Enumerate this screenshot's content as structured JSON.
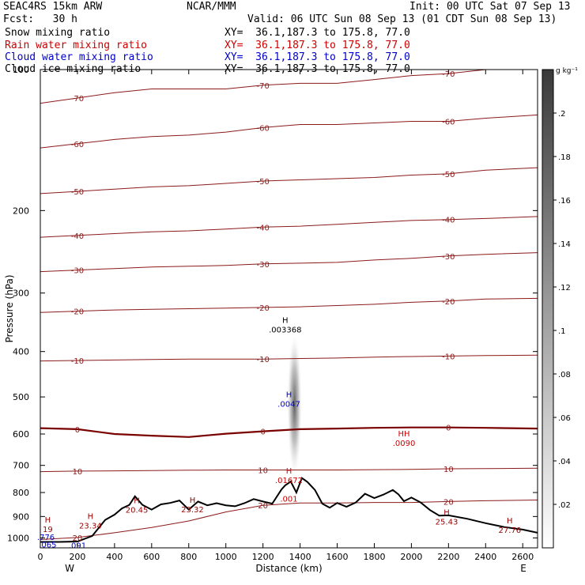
{
  "header": {
    "model": "SEAC4RS 15km ARW",
    "org": "NCAR/MMM",
    "init": "Init: 00 UTC Sat 07 Sep 13",
    "fcst": "Fcst:   30 h",
    "valid": "Valid: 06 UTC Sun 08 Sep 13 (01 CDT Sun 08 Sep 13)",
    "fields": [
      {
        "name": "Snow mixing ratio",
        "xy": "XY=  36.1,187.3 to 175.8, 77.0",
        "color": "#000000"
      },
      {
        "name": "Rain water mixing ratio",
        "xy": "XY=  36.1,187.3 to 175.8, 77.0",
        "color": "#cc0000"
      },
      {
        "name": "Cloud water mixing ratio",
        "xy": "XY=  36.1,187.3 to 175.8, 77.0",
        "color": "#0000cc"
      },
      {
        "name": "Cloud ice mixing ratio",
        "xy": "XY=  36.1,187.3 to 175.8, 77.0",
        "color": "#000000"
      }
    ]
  },
  "chart_data": {
    "type": "cross-section contour",
    "xlabel": "Distance (km)",
    "ylabel": "Pressure (hPa)",
    "xlim": [
      0,
      2680
    ],
    "ylim": [
      1050,
      100
    ],
    "x_ticks": [
      0,
      200,
      400,
      600,
      800,
      1000,
      1200,
      1400,
      1600,
      1800,
      2000,
      2200,
      2400,
      2600
    ],
    "y_ticks": [
      100,
      200,
      300,
      400,
      500,
      600,
      700,
      800,
      900,
      1000
    ],
    "left_end_label": "W",
    "right_end_label": "E",
    "colorbar": {
      "unit": "g kg⁻¹",
      "ticks": [
        ".02",
        ".04",
        ".06",
        ".08",
        ".1",
        ".12",
        ".14",
        ".16",
        ".18",
        ".2"
      ],
      "tick_values": [
        0.02,
        0.04,
        0.06,
        0.08,
        0.1,
        0.12,
        0.14,
        0.16,
        0.18,
        0.2
      ],
      "max": 0.22
    },
    "temperature_isotherms": [
      {
        "value": -70,
        "p": [
          118,
          115,
          112,
          110,
          110,
          110,
          108,
          107,
          107,
          105,
          103,
          102,
          100,
          99
        ]
      },
      {
        "value": -60,
        "p": [
          147,
          144,
          141,
          139,
          138,
          136,
          133,
          131,
          131,
          130,
          129,
          129,
          127,
          125
        ]
      },
      {
        "value": -50,
        "p": [
          184,
          182,
          180,
          178,
          177,
          175,
          173,
          172,
          171,
          170,
          168,
          167,
          164,
          162
        ]
      },
      {
        "value": -40,
        "p": [
          228,
          226,
          224,
          222,
          221,
          219,
          217,
          216,
          214,
          212,
          210,
          209,
          208,
          206
        ]
      },
      {
        "value": -30,
        "p": [
          270,
          268,
          266,
          264,
          263,
          262,
          260,
          259,
          258,
          255,
          253,
          250,
          248,
          246
        ]
      },
      {
        "value": -20,
        "p": [
          330,
          328,
          326,
          325,
          324,
          323,
          322,
          321,
          319,
          317,
          314,
          312,
          309,
          308
        ]
      },
      {
        "value": -10,
        "p": [
          419,
          418,
          417,
          416,
          415,
          415,
          415,
          414,
          413,
          411,
          410,
          409,
          408,
          407
        ]
      },
      {
        "value": 0,
        "p": [
          583,
          586,
          600,
          605,
          609,
          599,
          592,
          586,
          584,
          582,
          581,
          581,
          582,
          584
        ]
      },
      {
        "value": 10,
        "p": [
          722,
          720,
          719,
          718,
          717,
          716,
          716,
          716,
          716,
          715,
          714,
          712,
          711,
          710
        ]
      },
      {
        "value": 20,
        "p": [
          1008,
          998,
          975,
          950,
          920,
          880,
          852,
          842,
          842,
          840,
          840,
          836,
          833,
          830
        ]
      }
    ],
    "terrain": {
      "x": [
        0,
        100,
        200,
        280,
        350,
        400,
        440,
        480,
        510,
        550,
        600,
        650,
        700,
        750,
        800,
        850,
        900,
        950,
        1000,
        1050,
        1100,
        1150,
        1200,
        1250,
        1300,
        1320,
        1350,
        1380,
        1410,
        1440,
        1480,
        1520,
        1560,
        1600,
        1650,
        1700,
        1750,
        1800,
        1850,
        1900,
        1930,
        1960,
        2000,
        2050,
        2100,
        2150,
        2200,
        2300,
        2400,
        2500,
        2600,
        2680
      ],
      "p": [
        1020,
        1020,
        1018,
        990,
        915,
        892,
        865,
        850,
        815,
        850,
        870,
        848,
        842,
        832,
        870,
        836,
        852,
        843,
        852,
        856,
        843,
        826,
        836,
        845,
        788,
        772,
        758,
        800,
        745,
        760,
        790,
        845,
        862,
        842,
        858,
        840,
        805,
        822,
        808,
        790,
        807,
        835,
        820,
        840,
        872,
        896,
        895,
        910,
        930,
        948,
        960,
        975
      ]
    },
    "maxima_labels": [
      {
        "x": 40,
        "p": 935,
        "label": "H",
        "value": "19",
        "color": "#990000"
      },
      {
        "x": 270,
        "p": 918,
        "label": "H",
        "value": "23.34",
        "color": "#990000"
      },
      {
        "x": 520,
        "p": 850,
        "label": "H",
        "value": "20.45",
        "color": "#990000"
      },
      {
        "x": 820,
        "p": 848,
        "label": "H",
        "value": "23.32",
        "color": "#990000"
      },
      {
        "x": 1340,
        "p": 735,
        "label": "H",
        "value": ".01672",
        "color": "#cc0000"
      },
      {
        "x": 1340,
        "p": 805,
        "label": "",
        "value": ".001",
        "color": "#cc0000"
      },
      {
        "x": 1960,
        "p": 612,
        "label": "HH",
        "value": ".0090",
        "color": "#cc0000"
      },
      {
        "x": 2190,
        "p": 900,
        "label": "H",
        "value": "25.43",
        "color": "#990000"
      },
      {
        "x": 2530,
        "p": 938,
        "label": "H",
        "value": "27.76",
        "color": "#990000"
      },
      {
        "x": 1320,
        "p": 350,
        "label": "H",
        "value": ".003368",
        "color": "#000000"
      },
      {
        "x": 1340,
        "p": 505,
        "label": "H",
        "value": ".0047",
        "color": "#0000cc"
      },
      {
        "x": 40,
        "p": 1008,
        "label": "",
        "value": ".065",
        "color": "#0000cc"
      },
      {
        "x": 200,
        "p": 1012,
        "label": "",
        "value": ".091",
        "color": "#0000cc"
      },
      {
        "x": 30,
        "p": 972,
        "label": "",
        "value": ".776",
        "color": "#0000cc"
      }
    ],
    "snow_max": {
      "x": 1370,
      "p": 520,
      "value": 0.21
    }
  }
}
